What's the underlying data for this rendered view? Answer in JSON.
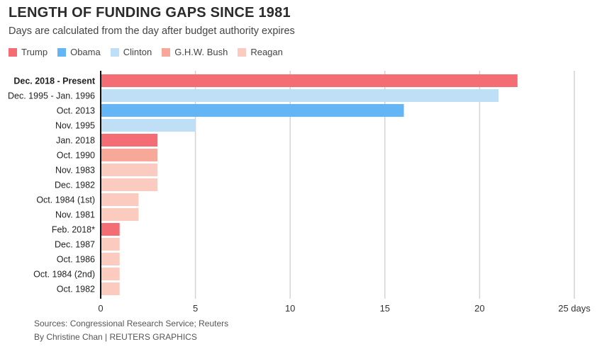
{
  "chart_data": {
    "type": "bar",
    "orientation": "horizontal",
    "title": "LENGTH OF FUNDING GAPS SINCE 1981",
    "subtitle": "Days are calculated from the day after budget authority expires",
    "legend": [
      {
        "name": "Trump",
        "color": "#f46d75"
      },
      {
        "name": "Obama",
        "color": "#64b5f6"
      },
      {
        "name": "Clinton",
        "color": "#bfdff7"
      },
      {
        "name": "G.H.W. Bush",
        "color": "#f7a898"
      },
      {
        "name": "Reagan",
        "color": "#fbcbbf"
      }
    ],
    "categories": [
      "Dec. 2018 - Present",
      "Dec. 1995 - Jan. 1996",
      "Oct. 2013",
      "Nov. 1995",
      "Jan. 2018",
      "Oct. 1990",
      "Nov. 1983",
      "Dec. 1982",
      "Oct. 1984 (1st)",
      "Nov. 1981",
      "Feb. 2018*",
      "Dec. 1987",
      "Oct. 1986",
      "Oct. 1984 (2nd)",
      "Oct. 1982"
    ],
    "values": [
      22,
      21,
      16,
      5,
      3,
      3,
      3,
      3,
      2,
      2,
      1,
      1,
      1,
      1,
      1
    ],
    "series_by_bar": [
      "Trump",
      "Clinton",
      "Obama",
      "Clinton",
      "Trump",
      "G.H.W. Bush",
      "Reagan",
      "Reagan",
      "Reagan",
      "Reagan",
      "Trump",
      "Reagan",
      "Reagan",
      "Reagan",
      "Reagan"
    ],
    "bold_category": "Dec. 2018 - Present",
    "xlim": [
      0,
      25
    ],
    "xticks": [
      0,
      5,
      10,
      15,
      20,
      25
    ],
    "xtick_labels": [
      "0",
      "5",
      "10",
      "15",
      "20",
      "25 days"
    ],
    "grid": true
  },
  "footer": {
    "sources": "Sources: Congressional Research Service; Reuters",
    "byline": "By Christine Chan | REUTERS GRAPHICS"
  }
}
